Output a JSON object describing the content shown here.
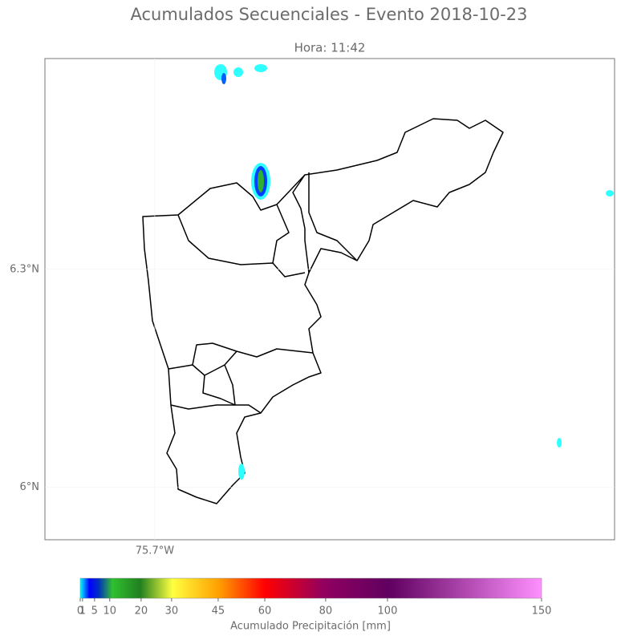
{
  "title": "Acumulados Secuenciales - Evento 2018-10-23",
  "subtitle": "Hora: 11:42",
  "map": {
    "lat_lim": [
      5.928,
      6.59
    ],
    "lon_lim": [
      -75.851,
      -75.068
    ],
    "lat_ticks": [
      {
        "value": 6.3,
        "label": "6.3°N"
      },
      {
        "value": 6,
        "label": "6°N"
      }
    ],
    "lon_ticks": [
      {
        "value": -75.7,
        "label": "75.7°W"
      }
    ]
  },
  "colorbar": {
    "label": "Acumulado Precipitación [mm]",
    "lim": [
      0,
      150
    ],
    "ticks": [
      0,
      1,
      5,
      10,
      20,
      30,
      45,
      60,
      80,
      100,
      150
    ]
  }
}
